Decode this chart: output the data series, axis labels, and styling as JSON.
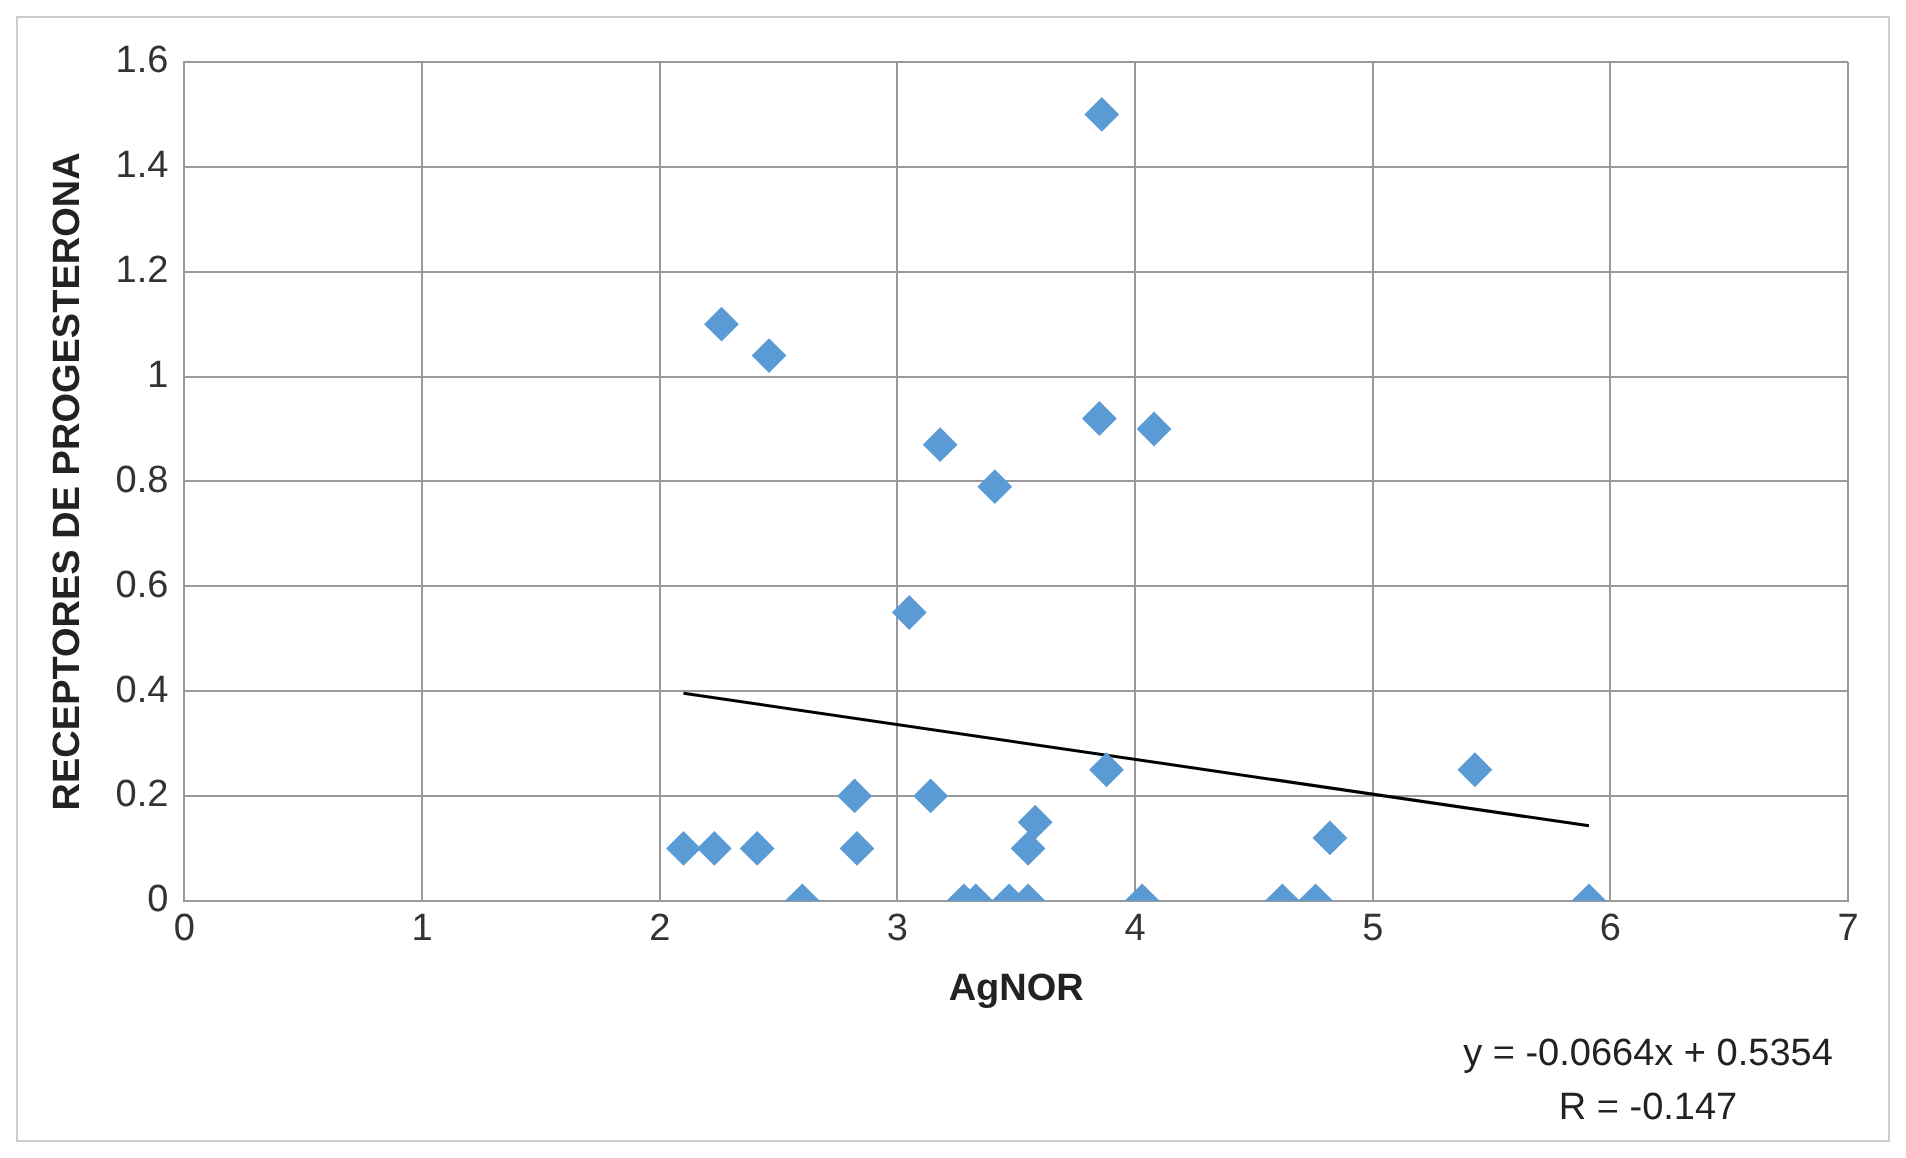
{
  "chart_data": {
    "type": "scatter",
    "xlabel": "AgNOR",
    "ylabel": "RECEPTORES DE PROGESTERONA",
    "xlim": [
      0,
      7
    ],
    "xticks": [
      0,
      1,
      2,
      3,
      4,
      5,
      6,
      7
    ],
    "ylim": [
      0,
      1.6
    ],
    "yticks": [
      0,
      0.2,
      0.4,
      0.6,
      0.8,
      1,
      1.2,
      1.4,
      1.6
    ],
    "grid": true,
    "legend": false,
    "annotations": [
      "y = -0.0664x + 0.5354",
      "R = -0.147"
    ],
    "series": [
      {
        "marker": "diamond",
        "color": "#5b9bd5",
        "x": [
          2.1,
          2.23,
          2.26,
          2.46,
          2.41,
          2.6,
          2.82,
          2.83,
          3.05,
          3.14,
          3.18,
          3.28,
          3.33,
          3.41,
          3.47,
          3.55,
          3.58,
          3.55,
          3.86,
          3.85,
          3.88,
          4.03,
          4.08,
          4.62,
          4.76,
          4.82,
          5.43,
          5.91
        ],
        "values": [
          0.1,
          0.1,
          1.1,
          1.04,
          0.1,
          0,
          0.2,
          0.1,
          0.55,
          0.2,
          0.87,
          0,
          0,
          0.79,
          0,
          0.1,
          0.15,
          0,
          1.5,
          0.92,
          0.25,
          0,
          0.9,
          0,
          0,
          0.12,
          0.25,
          0
        ]
      },
      {
        "type": "line",
        "marker": "none",
        "color": "#000000",
        "x": [
          2.1,
          5.91
        ],
        "values": [
          0.396,
          0.143
        ]
      }
    ]
  }
}
